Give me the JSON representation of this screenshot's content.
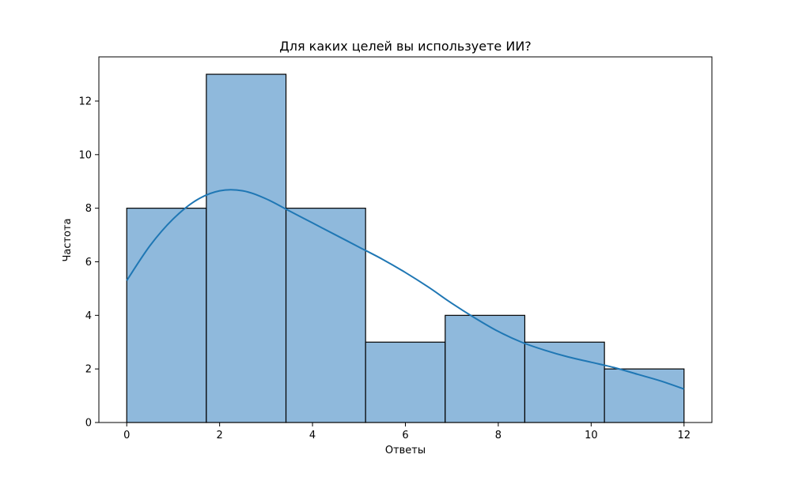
{
  "chart_data": {
    "type": "bar",
    "subtype": "histogram_with_kde",
    "title": "Для каких целей вы используете ИИ?",
    "xlabel": "Ответы",
    "ylabel": "Частота",
    "xlim": [
      -0.6,
      12.6
    ],
    "ylim": [
      0,
      13.65
    ],
    "xticks": [
      0,
      2,
      4,
      6,
      8,
      10,
      12
    ],
    "yticks": [
      0,
      2,
      4,
      6,
      8,
      10,
      12
    ],
    "bin_edges": [
      0,
      1.714,
      3.429,
      5.143,
      6.857,
      8.571,
      10.286,
      12
    ],
    "values": [
      8,
      13,
      8,
      3,
      4,
      3,
      2
    ],
    "kde": {
      "x": [
        0,
        0.5,
        1,
        1.5,
        2,
        2.5,
        3,
        3.5,
        4,
        4.5,
        5,
        5.5,
        6,
        6.5,
        7,
        7.5,
        8,
        8.5,
        9,
        9.5,
        10,
        10.5,
        11,
        11.5,
        12
      ],
      "y": [
        5.3,
        6.6,
        7.6,
        8.3,
        8.65,
        8.65,
        8.35,
        7.9,
        7.45,
        7.0,
        6.55,
        6.1,
        5.6,
        5.05,
        4.45,
        3.9,
        3.4,
        3.0,
        2.7,
        2.45,
        2.25,
        2.05,
        1.8,
        1.55,
        1.25
      ]
    },
    "colors": {
      "bar_fill": "#8fb9dc",
      "bar_edge": "#000000",
      "kde_line": "#1f77b4"
    },
    "grid": false,
    "legend": "none"
  }
}
